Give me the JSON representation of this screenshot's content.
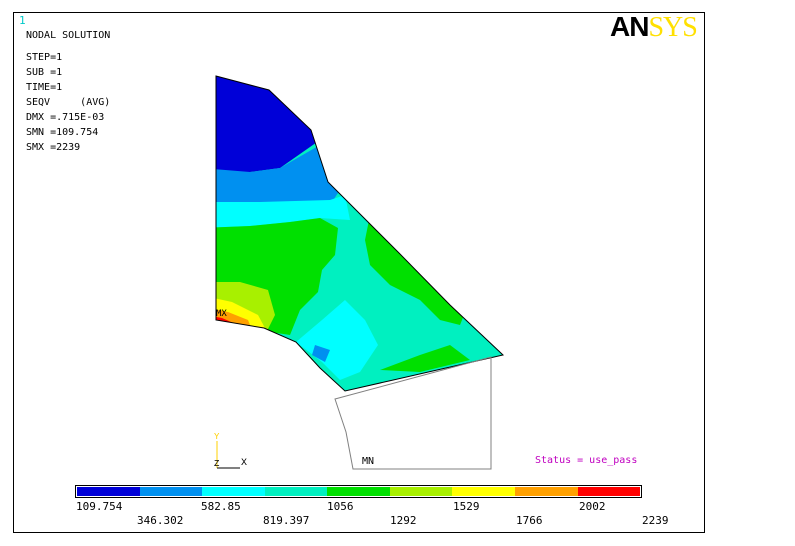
{
  "window_number": "1",
  "logo": {
    "part1": "AN",
    "part2": "SYS"
  },
  "info_lines": [
    "NODAL SOLUTION",
    "STEP=1",
    "SUB =1",
    "TIME=1",
    "SEQV     (AVG)",
    "DMX =.715E-03",
    "SMN =109.754",
    "SMX =2239"
  ],
  "status": "Status = use_pass",
  "labels": {
    "mn": "MN",
    "mx": "MX",
    "axis_y": "Y",
    "axis_z": "Z",
    "axis_x": "X"
  },
  "legend": {
    "colors": [
      "#0000d8",
      "#0090f0",
      "#00ffff",
      "#00f0c0",
      "#00e000",
      "#a8f000",
      "#ffff00",
      "#ffa000",
      "#ff0000"
    ],
    "values_top": [
      "109.754",
      "582.85",
      "1056",
      "1529",
      "2002"
    ],
    "values_bottom": [
      "346.302",
      "819.397",
      "1292",
      "1766",
      "2239"
    ]
  }
}
